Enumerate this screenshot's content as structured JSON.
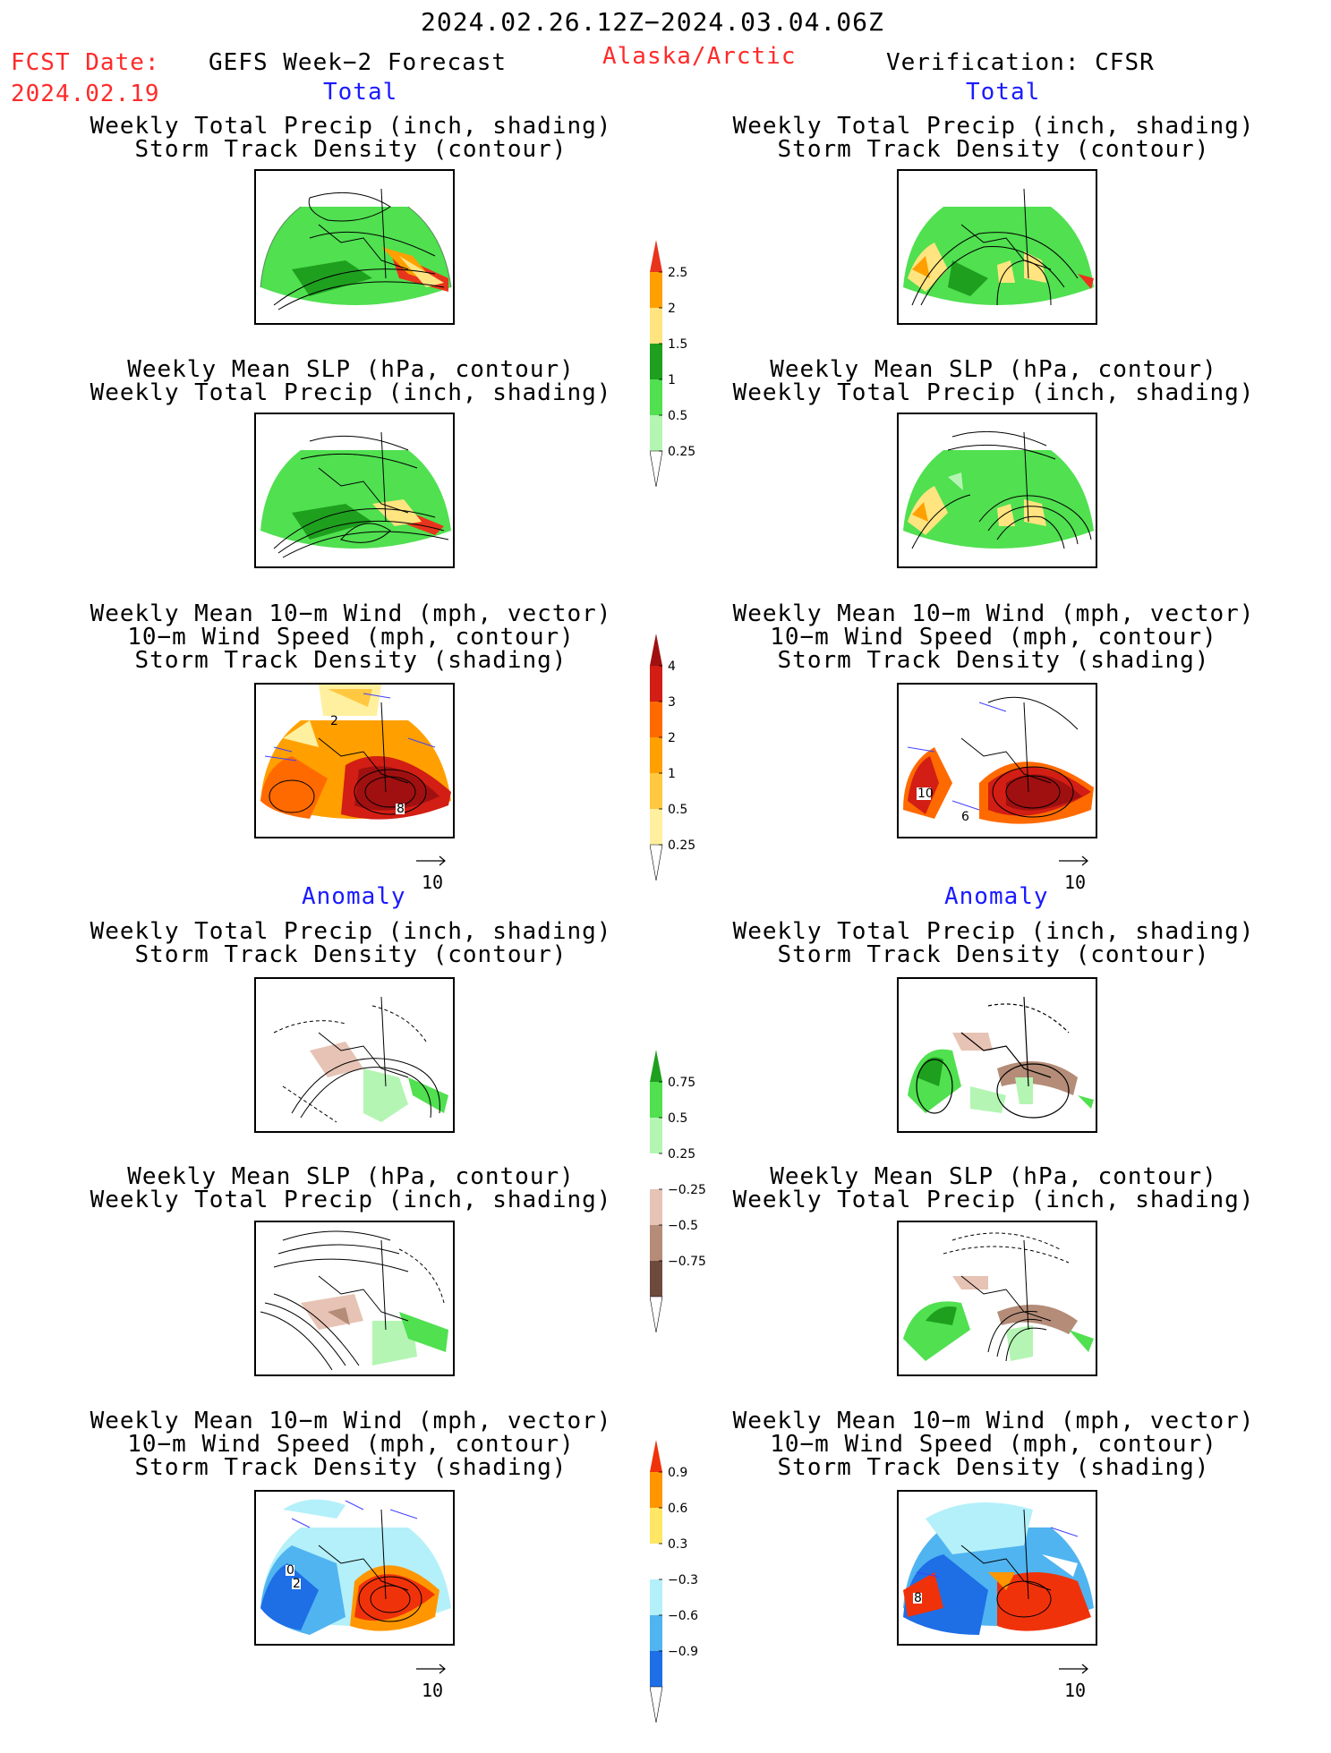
{
  "header": {
    "date_range": "2024.02.26.12Z−2024.03.04.06Z",
    "fcst_label": "FCST Date:",
    "fcst_date": "2024.02.19",
    "model": "GEFS Week−2 Forecast",
    "region": "Alaska/Arctic",
    "verification": "Verification: CFSR"
  },
  "sections": {
    "total": "Total",
    "anomaly": "Anomaly"
  },
  "titles": {
    "precip_track_1": "Weekly Total Precip (inch, shading)",
    "precip_track_2": "Storm Track Density (contour)",
    "slp_precip_1": "Weekly Mean SLP (hPa, contour)",
    "slp_precip_2": "Weekly Total Precip (inch, shading)",
    "wind_1": "Weekly Mean 10−m Wind (mph, vector)",
    "wind_2": "10−m Wind Speed (mph, contour)",
    "wind_3": "Storm Track Density (shading)"
  },
  "vector_ref": "10",
  "contour_labels": {
    "total_wind_left": [
      "2",
      "8"
    ],
    "total_wind_right": [
      "10",
      "6"
    ],
    "anom_wind_left": [
      "0",
      "2"
    ],
    "anom_wind_right": [
      "8"
    ]
  },
  "colorbars": {
    "precip_total": {
      "labels": [
        "2.5",
        "2",
        "1.5",
        "1",
        "0.5",
        "0.25"
      ],
      "colors": [
        "#e8341c",
        "#ffa000",
        "#ffe480",
        "#1ea01e",
        "#50e050",
        "#b4f5b4"
      ]
    },
    "track_total": {
      "labels": [
        "4",
        "3",
        "2",
        "1",
        "0.5",
        "0.25"
      ],
      "colors": [
        "#a01010",
        "#d21e14",
        "#ff6a00",
        "#ffa000",
        "#ffc840",
        "#fff0a0"
      ]
    },
    "precip_anom": {
      "labels": [
        "0.75",
        "0.5",
        "0.25",
        "−0.25",
        "−0.5",
        "−0.75"
      ],
      "colors": [
        "#1ea01e",
        "#50e050",
        "#b4f5b4",
        "#ffffff",
        "#e6c3b4",
        "#b48c78",
        "#6e4a3c"
      ]
    },
    "track_anom": {
      "labels": [
        "0.9",
        "0.6",
        "0.3",
        "−0.3",
        "−0.6",
        "−0.9"
      ],
      "colors": [
        "#f0320a",
        "#ff9600",
        "#ffe664",
        "#ffffff",
        "#b4f0fa",
        "#50b4f0",
        "#1e6ee6"
      ]
    }
  }
}
